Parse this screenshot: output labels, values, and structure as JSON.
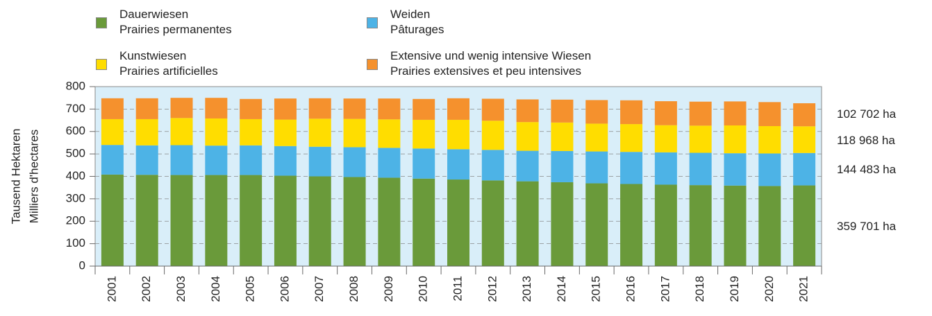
{
  "chart_data": {
    "type": "stacked_bar",
    "ylabel": [
      "Tausend Hektaren",
      "Milliers d'hectares"
    ],
    "categories": [
      "2001",
      "2002",
      "2003",
      "2004",
      "2005",
      "2006",
      "2007",
      "2008",
      "2009",
      "2010",
      "2011",
      "2012",
      "2013",
      "2014",
      "2015",
      "2016",
      "2017",
      "2018",
      "2019",
      "2020",
      "2021"
    ],
    "series": [
      {
        "name": "Dauerwiesen\nPrairies permanentes",
        "color": "#6a9a3a",
        "values": [
          408,
          407,
          406,
          406,
          406,
          403,
          400,
          397,
          394,
          390,
          386,
          382,
          378,
          374,
          369,
          366,
          363,
          361,
          359,
          357,
          359.701
        ]
      },
      {
        "name": "Weiden\nPâturages",
        "color": "#4db3e6",
        "values": [
          132,
          131,
          133,
          131,
          132,
          132,
          132,
          133,
          133,
          134,
          135,
          136,
          136,
          139,
          142,
          143,
          144,
          144,
          144,
          145,
          144.483
        ]
      },
      {
        "name": "Kunstwiesen\n  Prairies artificielles",
        "color": "#ffdd00",
        "values": [
          115,
          117,
          121,
          121,
          117,
          118,
          125,
          126,
          127,
          128,
          131,
          130,
          128,
          127,
          124,
          124,
          121,
          121,
          124,
          122,
          118.968
        ]
      },
      {
        "name": "Extensive und wenig intensive Wiesen\nPrairies extensives et peu intensives",
        "color": "#f5912d",
        "values": [
          93,
          93,
          90,
          92,
          90,
          94,
          91,
          91,
          93,
          93,
          96,
          98,
          101,
          102,
          105,
          106,
          107,
          107,
          107,
          107,
          102.702
        ]
      }
    ],
    "annotations": [
      "102 702 ha",
      "118 968 ha",
      "144 483 ha",
      "359 701 ha"
    ],
    "ylim": [
      0,
      800
    ],
    "yticks": [
      0,
      100,
      200,
      300,
      400,
      500,
      600,
      700,
      800
    ],
    "grid": true
  }
}
